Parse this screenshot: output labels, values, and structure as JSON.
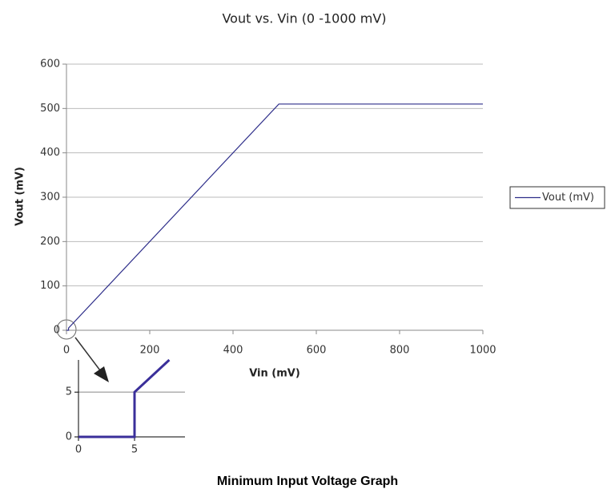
{
  "chart_data": [
    {
      "type": "line",
      "title": "Vout vs. Vin (0 -1000 mV)",
      "x_label": "Vin (mV)",
      "y_label": "Vout (mV)",
      "x": [
        0,
        5,
        5,
        510,
        1000
      ],
      "series": [
        {
          "name": "Vout (mV)",
          "color": "#2e2e8a",
          "values": [
            0,
            0,
            5,
            510,
            510
          ]
        }
      ],
      "xlim": [
        0,
        1000
      ],
      "xticks": [
        0,
        200,
        400,
        600,
        800,
        1000
      ],
      "ylim": [
        0,
        600
      ],
      "yticks": [
        0,
        100,
        200,
        300,
        400,
        500,
        600
      ],
      "grid": true,
      "legend": "right"
    },
    {
      "type": "line",
      "x": [
        0,
        5,
        5,
        8.1
      ],
      "values": [
        0,
        0,
        5,
        8.6
      ],
      "color": "#3a2f9a",
      "xlim": [
        0,
        9.5
      ],
      "xticks": [
        0,
        5
      ],
      "ylim": [
        0,
        8.6
      ],
      "yticks": [
        0,
        5
      ],
      "grid": true
    }
  ],
  "caption": "Minimum Input Voltage Graph"
}
